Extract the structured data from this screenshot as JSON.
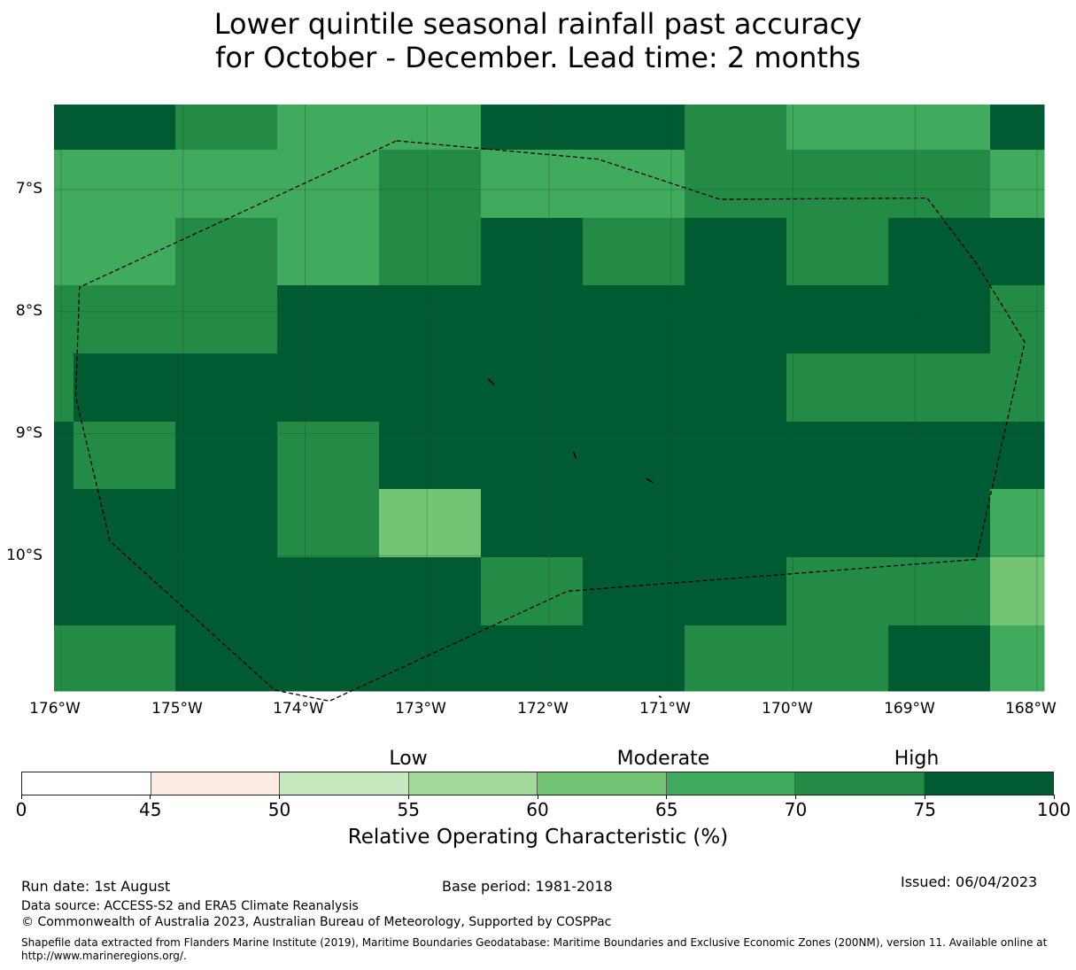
{
  "title": {
    "line1": "Lower quintile seasonal rainfall past accuracy",
    "line2": "for October - December. Lead time: 2 months"
  },
  "map": {
    "lon_range": [
      -176,
      -168
    ],
    "lat_range": [
      -11.2,
      -6.45
    ],
    "lat_labels": [
      "7°S",
      "8°S",
      "9°S",
      "10°S"
    ],
    "lon_labels": [
      "176°W",
      "175°W",
      "174°W",
      "173°W",
      "172°W",
      "171°W",
      "170°W",
      "169°W",
      "168°W"
    ],
    "colors": {
      "c45": "#fdebe3",
      "c50": "#c7e9c0",
      "c55": "#a1d99b",
      "c60": "#74c476",
      "c65": "#41ab5d",
      "c70": "#238b45",
      "c75": "#005a32"
    },
    "cells": [
      [
        "c75",
        "c70",
        "c65",
        "c65",
        "c75",
        "c75",
        "c70",
        "c65",
        "c65",
        "c75"
      ],
      [
        "c65",
        "c65",
        "c65",
        "c70",
        "c65",
        "c65",
        "c70",
        "c70",
        "c70",
        "c65"
      ],
      [
        "c65",
        "c70",
        "c65",
        "c70",
        "c75",
        "c70",
        "c75",
        "c70",
        "c75",
        "c75"
      ],
      [
        "c70",
        "c70",
        "c75",
        "c75",
        "c75",
        "c75",
        "c75",
        "c75",
        "c75",
        "c70"
      ],
      [
        "c75",
        "c75",
        "c75",
        "c75",
        "c75",
        "c75",
        "c75",
        "c70",
        "c70",
        "c70"
      ],
      [
        "c70",
        "c75",
        "c70",
        "c75",
        "c75",
        "c75",
        "c75",
        "c75",
        "c75",
        "c75"
      ],
      [
        "c75",
        "c75",
        "c70",
        "c60",
        "c75",
        "c75",
        "c75",
        "c75",
        "c75",
        "c65"
      ],
      [
        "c75",
        "c75",
        "c75",
        "c75",
        "c70",
        "c75",
        "c75",
        "c70",
        "c70",
        "c60"
      ],
      [
        "c70",
        "c75",
        "c75",
        "c75",
        "c75",
        "c75",
        "c70",
        "c70",
        "c75",
        "c65"
      ]
    ],
    "eez_boundary_lonlat": [
      [
        -173.25,
        -6.6
      ],
      [
        -171.6,
        -6.75
      ],
      [
        -170.6,
        -7.08
      ],
      [
        -168.9,
        -7.07
      ],
      [
        -168.5,
        -7.6
      ],
      [
        -168.1,
        -8.25
      ],
      [
        -168.5,
        -10.03
      ],
      [
        -171.85,
        -10.29
      ],
      [
        -173.8,
        -11.19
      ],
      [
        -174.25,
        -11.1
      ],
      [
        -175.6,
        -9.88
      ],
      [
        -175.88,
        -8.7
      ],
      [
        -175.85,
        -7.8
      ],
      [
        -173.25,
        -6.6
      ]
    ]
  },
  "colorbar": {
    "segments": [
      {
        "from": 0,
        "to": 45,
        "color": "#ffffff"
      },
      {
        "from": 45,
        "to": 50,
        "color": "#fdebe3"
      },
      {
        "from": 50,
        "to": 55,
        "color": "#c7e9c0"
      },
      {
        "from": 55,
        "to": 60,
        "color": "#a1d99b"
      },
      {
        "from": 60,
        "to": 65,
        "color": "#74c476"
      },
      {
        "from": 65,
        "to": 70,
        "color": "#41ab5d"
      },
      {
        "from": 70,
        "to": 75,
        "color": "#238b45"
      },
      {
        "from": 75,
        "to": 100,
        "color": "#005a32"
      }
    ],
    "ticks": [
      "0",
      "45",
      "50",
      "55",
      "60",
      "65",
      "70",
      "75",
      "100"
    ],
    "categories": [
      "Low",
      "Moderate",
      "High"
    ],
    "label": "Relative Operating Characteristic (%)"
  },
  "footer": {
    "run_date": "Run date: 1st August",
    "base_period": "Base period: 1981-2018",
    "issued": "Issued: 06/04/2023",
    "data_source": "Data source: ACCESS-S2 and ERA5 Climate Reanalysis",
    "copyright": "© Commonwealth of Australia 2023, Australian Bureau of Meteorology, Supported by COSPPac",
    "shapefile": "Shapefile data extracted from Flanders Marine Institute (2019), Maritime Boundaries Geodatabase: Maritime Boundaries and Exclusive Economic Zones (200NM), version 11. Available online at http://www.marineregions.org/."
  }
}
